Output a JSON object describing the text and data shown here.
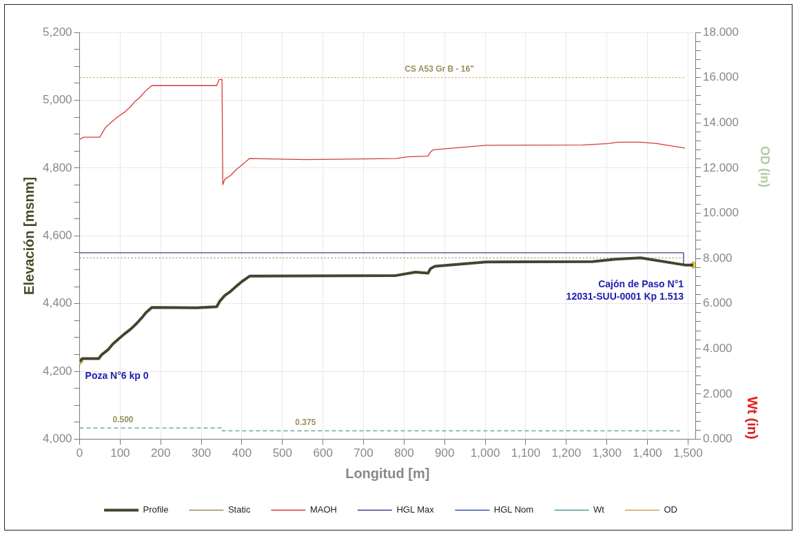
{
  "chart_data": {
    "type": "line",
    "xlabel": "Longitud [m]",
    "ylabel": "Elevación [msnm]",
    "y2label": "Wt (in)",
    "annotations": [
      "OD (in)",
      {
        "text": "Poza N°6 kp 0",
        "x": 0,
        "y": 4229
      },
      {
        "text": "Cajón de Paso N°1\n12031-SUU-0001 Kp 1.513",
        "x": 1513,
        "y": 4514
      }
    ],
    "xlim": [
      0,
      1518
    ],
    "xticks": [
      0,
      100,
      200,
      300,
      400,
      500,
      600,
      700,
      800,
      900,
      {
        "value": 1000,
        "label": "1,000"
      },
      {
        "value": 1100,
        "label": "1,100"
      },
      {
        "value": 1200,
        "label": "1,200"
      },
      {
        "value": 1300,
        "label": "1,300"
      },
      {
        "value": 1400,
        "label": "1,400"
      },
      {
        "value": 1500,
        "label": "1,500"
      }
    ],
    "ylim": [
      4000,
      5200
    ],
    "yticks": [
      {
        "value": 4000,
        "label": "4,000"
      },
      {
        "value": 4050,
        "label": null
      },
      {
        "value": 4100,
        "label": null
      },
      {
        "value": 4150,
        "label": null
      },
      {
        "value": 4200,
        "label": "4,200"
      },
      {
        "value": 4250,
        "label": null
      },
      {
        "value": 4300,
        "label": null
      },
      {
        "value": 4350,
        "label": null
      },
      {
        "value": 4400,
        "label": "4,400"
      },
      {
        "value": 4450,
        "label": null
      },
      {
        "value": 4500,
        "label": null
      },
      {
        "value": 4550,
        "label": null
      },
      {
        "value": 4600,
        "label": "4,600"
      },
      {
        "value": 4650,
        "label": null
      },
      {
        "value": 4700,
        "label": null
      },
      {
        "value": 4750,
        "label": null
      },
      {
        "value": 4800,
        "label": "4,800"
      },
      {
        "value": 4850,
        "label": null
      },
      {
        "value": 4900,
        "label": null
      },
      {
        "value": 4950,
        "label": null
      },
      {
        "value": 5000,
        "label": "5,000"
      },
      {
        "value": 5050,
        "label": null
      },
      {
        "value": 5100,
        "label": null
      },
      {
        "value": 5150,
        "label": null
      },
      {
        "value": 5200,
        "label": "5,200"
      }
    ],
    "y2lim": [
      0,
      18
    ],
    "y2ticks": [
      {
        "value": 0,
        "label": "0.000"
      },
      {
        "value": 0.4,
        "label": null
      },
      {
        "value": 0.8,
        "label": null
      },
      {
        "value": 1.2,
        "label": null
      },
      {
        "value": 1.6,
        "label": null
      },
      {
        "value": 2,
        "label": "2.000"
      },
      {
        "value": 2.4,
        "label": null
      },
      {
        "value": 2.8,
        "label": null
      },
      {
        "value": 3.2,
        "label": null
      },
      {
        "value": 3.6,
        "label": null
      },
      {
        "value": 4,
        "label": "4.000"
      },
      {
        "value": 4.4,
        "label": null
      },
      {
        "value": 4.8,
        "label": null
      },
      {
        "value": 5.2,
        "label": null
      },
      {
        "value": 5.6,
        "label": null
      },
      {
        "value": 6,
        "label": "6.000"
      },
      {
        "value": 6.4,
        "label": null
      },
      {
        "value": 6.8,
        "label": null
      },
      {
        "value": 7.2,
        "label": null
      },
      {
        "value": 7.6,
        "label": null
      },
      {
        "value": 8,
        "label": "8.000"
      },
      {
        "value": 8.4,
        "label": null
      },
      {
        "value": 8.8,
        "label": null
      },
      {
        "value": 9.2,
        "label": null
      },
      {
        "value": 9.6,
        "label": null
      },
      {
        "value": 10,
        "label": "10.000"
      },
      {
        "value": 10.4,
        "label": null
      },
      {
        "value": 10.8,
        "label": null
      },
      {
        "value": 11.2,
        "label": null
      },
      {
        "value": 11.6,
        "label": null
      },
      {
        "value": 12,
        "label": "12.000"
      },
      {
        "value": 12.4,
        "label": null
      },
      {
        "value": 12.8,
        "label": null
      },
      {
        "value": 13.2,
        "label": null
      },
      {
        "value": 13.6,
        "label": null
      },
      {
        "value": 14,
        "label": "14.000"
      },
      {
        "value": 14.4,
        "label": null
      },
      {
        "value": 14.8,
        "label": null
      },
      {
        "value": 15.2,
        "label": null
      },
      {
        "value": 15.6,
        "label": null
      },
      {
        "value": 16,
        "label": "16.000"
      },
      {
        "value": 16.4,
        "label": null
      },
      {
        "value": 16.8,
        "label": null
      },
      {
        "value": 17.2,
        "label": null
      },
      {
        "value": 17.6,
        "label": null
      },
      {
        "value": 18,
        "label": "18.000"
      }
    ],
    "grid": true,
    "legend": "bottom",
    "series": [
      {
        "name": "Profile",
        "color": "#46432e",
        "line_style": "solid",
        "x": [
          0,
          7,
          47,
          55,
          70,
          82,
          99,
          113,
          127,
          141,
          153,
          164,
          178,
          289,
          338,
          346,
          358,
          372,
          386,
          400,
          419,
          780,
          828,
          859,
          865,
          876,
          1002,
          1264,
          1321,
          1383,
          1492,
          1513
        ],
        "values": [
          4229,
          4238,
          4238,
          4250,
          4264,
          4281,
          4299,
          4313,
          4326,
          4342,
          4358,
          4374,
          4389,
          4388,
          4391,
          4408,
          4424,
          4436,
          4451,
          4465,
          4481,
          4483,
          4493,
          4490,
          4503,
          4510,
          4523,
          4524,
          4531,
          4535,
          4514,
          4514
        ]
      },
      {
        "name": "Static",
        "color": "#9a8a5a",
        "line_style": "dotted",
        "x": [
          0,
          1490
        ],
        "values": [
          4535,
          4535
        ]
      },
      {
        "name": "MAOH",
        "color": "#d93838",
        "line_style": "solid",
        "x": [
          0,
          10,
          50,
          56,
          64,
          79,
          93,
          110,
          124,
          137,
          150,
          163,
          178,
          300,
          338,
          344,
          351,
          353,
          358,
          372,
          386,
          400,
          419,
          557,
          780,
          808,
          859,
          865,
          872,
          1002,
          1241,
          1304,
          1327,
          1383,
          1423,
          1492
        ],
        "values": [
          4884,
          4891,
          4891,
          4904,
          4920,
          4936,
          4950,
          4964,
          4979,
          4997,
          5010,
          5028,
          5043,
          5043,
          5043,
          5061,
          5061,
          4751,
          4767,
          4778,
          4795,
          4809,
          4828,
          4825,
          4828,
          4833,
          4835,
          4847,
          4854,
          4867,
          4868,
          4872,
          4876,
          4876,
          4872,
          4859
        ]
      },
      {
        "name": "HGL Max",
        "color": "#3c3c8c",
        "line_style": "solid",
        "x": [
          0,
          1489,
          1489,
          1513
        ],
        "values": [
          4550,
          4550,
          4514,
          4514
        ]
      },
      {
        "name": "HGL Nom",
        "color": "#3050a8",
        "line_style": "dashed"
      },
      {
        "name": "Wt",
        "color": "#4a9a9a",
        "line_style": "dashed",
        "axis": "y2",
        "x": [
          0,
          107,
          352,
          352,
          557,
          1480
        ],
        "values": [
          0.5,
          0.5,
          0.5,
          0.375,
          0.375,
          0.375
        ],
        "value_labels": [
          null,
          "0.500",
          null,
          null,
          "0.375",
          null
        ]
      },
      {
        "name": "OD",
        "color": "#c8a050",
        "line_style": "dotted",
        "axis": "y2",
        "x": [
          0,
          887,
          1490
        ],
        "values": [
          16,
          16,
          16
        ],
        "value_labels": [
          null,
          "CS A53 Gr B - 16\"",
          null
        ]
      },
      {
        "type": "scatter",
        "color": "#f0e020",
        "marker": "diamond",
        "x": [
          0,
          1513
        ],
        "values": [
          4229,
          4514
        ]
      }
    ]
  }
}
